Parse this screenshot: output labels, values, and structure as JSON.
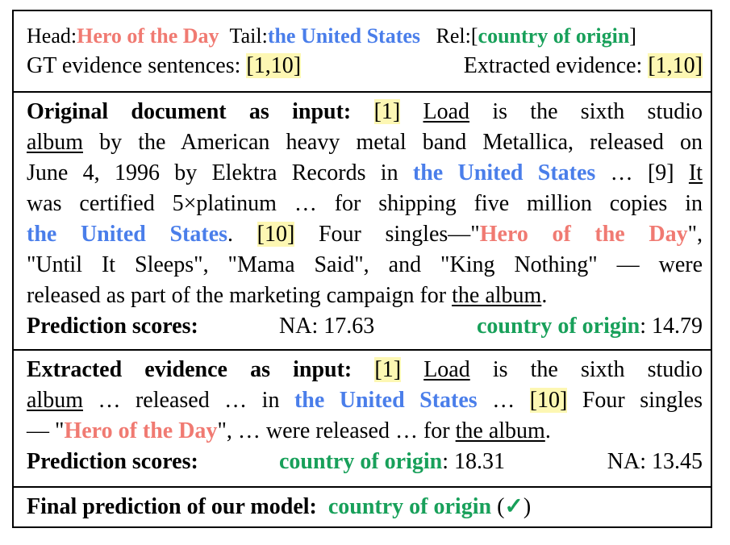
{
  "header": {
    "head_prefix": "Head:",
    "head": "Hero of the Day",
    "tail_prefix": "Tail:",
    "tail": "the United States",
    "rel_prefix": "Rel:[",
    "rel": "country of origin",
    "rel_suffix": "]",
    "gt_label": "GT evidence sentences: ",
    "gt_value": "[1,10]",
    "extracted_label": "Extracted evidence: ",
    "extracted_value": "[1,10]"
  },
  "original": {
    "title": "Original document as input:",
    "s1": "[1]",
    "load": "Load",
    "t1": " is the sixth studio",
    "album1": "album",
    "t2": " by the American heavy metal band Metallica, released on",
    "t3": "June 4, 1996 by Elektra Records in ",
    "us1": "the United States",
    "t4": " … [9] ",
    "it": "It",
    "t5": "was certified 5×platinum … for shipping five million copies in",
    "us2": "the United States",
    "t6": ". ",
    "s10": "[10]",
    "t7": " Four singles—\"",
    "hero": "Hero of the Day",
    "t8": "\",",
    "t9": "\"Until It Sleeps\", \"Mama Said\", and \"King Nothing\" — were",
    "t10": "released as part of the marketing campaign for ",
    "album2": "the album",
    "t11": ".",
    "scores_label": "Prediction scores:",
    "score1_label": "NA",
    "score1_value": ": 17.63",
    "score2_label": "country of origin",
    "score2_value": ": 14.79"
  },
  "extracted": {
    "title": "Extracted evidence as input:",
    "s1": "[1]",
    "load": "Load",
    "t1": " is the sixth studio",
    "album1": "album",
    "t2": " … released … in ",
    "us1": "the United States",
    "t3": " … ",
    "s10": "[10]",
    "t4": " Four singles",
    "t5": "— \"",
    "hero": "Hero of the Day",
    "t6": "\", … were released … for ",
    "album2": "the album",
    "t7": ".",
    "scores_label": "Prediction scores:",
    "score1_label": "country of origin",
    "score1_value": ": 18.31",
    "score2_label": "NA",
    "score2_value": ": 13.45"
  },
  "final": {
    "label": "Final prediction of our model:",
    "value": "country of origin",
    "open": " (",
    "check": "✓",
    "close": ")"
  },
  "colors": {
    "head": "#f07a72",
    "tail": "#4a7eea",
    "relation": "#18a05a",
    "highlight": "#fdf7b3"
  }
}
